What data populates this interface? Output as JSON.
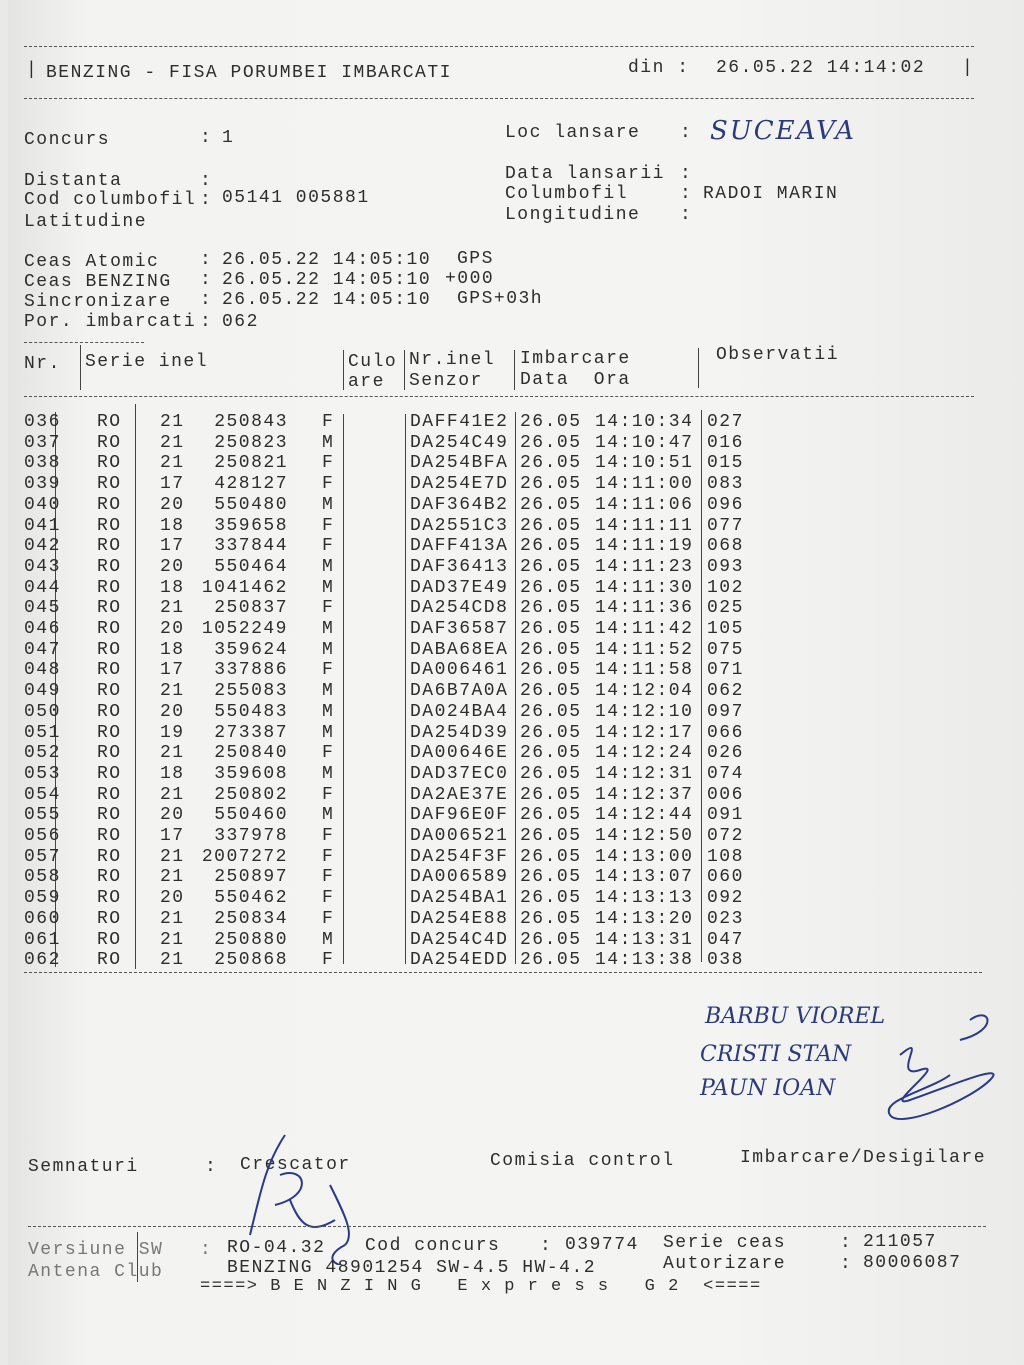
{
  "header": {
    "title": "BENZING - FISA PORUMBEI IMBARCATI",
    "date_label": "din :",
    "date_value": "26.05.22 14:14:02"
  },
  "info": {
    "concurs_label": "Concurs",
    "concurs_value": "1",
    "distanta_label": "Distanta",
    "cod_label": "Cod columbofil",
    "cod_value": "05141 005881",
    "latitudine_label": "Latitudine",
    "loc_label": "Loc lansare",
    "loc_value": "SUCEAVA",
    "data_lansarii_label": "Data lansarii",
    "columbofil_label": "Columbofil",
    "columbofil_value": "RADOI MARIN",
    "longitudine_label": "Longitudine"
  },
  "clock": {
    "atomic_label": "Ceas Atomic",
    "atomic_value": "26.05.22 14:05:10",
    "atomic_suffix": "GPS",
    "benzing_label": "Ceas BENZING",
    "benzing_value": "26.05.22 14:05:10",
    "benzing_suffix": "+000",
    "sync_label": "Sincronizare",
    "sync_value": "26.05.22 14:05:10",
    "sync_suffix": "GPS+03h",
    "por_label": "Por. imbarcati",
    "por_value": "062"
  },
  "table": {
    "headers": {
      "nr": "Nr.",
      "serie": "Serie inel",
      "culoare1": "Culo",
      "culoare2": "are",
      "nrinel1": "Nr.inel",
      "nrinel2": "Senzor",
      "imb1": "Imbarcare",
      "imb2": "Data  Ora",
      "obs": "Observatii"
    },
    "rows": [
      [
        "036",
        "RO",
        "21",
        "250843",
        "F",
        "DAFF41E2",
        "26.05",
        "14:10:34",
        "027"
      ],
      [
        "037",
        "RO",
        "21",
        "250823",
        "M",
        "DA254C49",
        "26.05",
        "14:10:47",
        "016"
      ],
      [
        "038",
        "RO",
        "21",
        "250821",
        "F",
        "DA254BFA",
        "26.05",
        "14:10:51",
        "015"
      ],
      [
        "039",
        "RO",
        "17",
        "428127",
        "F",
        "DA254E7D",
        "26.05",
        "14:11:00",
        "083"
      ],
      [
        "040",
        "RO",
        "20",
        "550480",
        "M",
        "DAF364B2",
        "26.05",
        "14:11:06",
        "096"
      ],
      [
        "041",
        "RO",
        "18",
        "359658",
        "F",
        "DA2551C3",
        "26.05",
        "14:11:11",
        "077"
      ],
      [
        "042",
        "RO",
        "17",
        "337844",
        "F",
        "DAFF413A",
        "26.05",
        "14:11:19",
        "068"
      ],
      [
        "043",
        "RO",
        "20",
        "550464",
        "M",
        "DAF36413",
        "26.05",
        "14:11:23",
        "093"
      ],
      [
        "044",
        "RO",
        "18",
        "1041462",
        "M",
        "DAD37E49",
        "26.05",
        "14:11:30",
        "102"
      ],
      [
        "045",
        "RO",
        "21",
        "250837",
        "F",
        "DA254CD8",
        "26.05",
        "14:11:36",
        "025"
      ],
      [
        "046",
        "RO",
        "20",
        "1052249",
        "M",
        "DAF36587",
        "26.05",
        "14:11:42",
        "105"
      ],
      [
        "047",
        "RO",
        "18",
        "359624",
        "M",
        "DABA68EA",
        "26.05",
        "14:11:52",
        "075"
      ],
      [
        "048",
        "RO",
        "17",
        "337886",
        "F",
        "DA006461",
        "26.05",
        "14:11:58",
        "071"
      ],
      [
        "049",
        "RO",
        "21",
        "255083",
        "M",
        "DA6B7A0A",
        "26.05",
        "14:12:04",
        "062"
      ],
      [
        "050",
        "RO",
        "20",
        "550483",
        "M",
        "DA024BA4",
        "26.05",
        "14:12:10",
        "097"
      ],
      [
        "051",
        "RO",
        "19",
        "273387",
        "M",
        "DA254D39",
        "26.05",
        "14:12:17",
        "066"
      ],
      [
        "052",
        "RO",
        "21",
        "250840",
        "F",
        "DA00646E",
        "26.05",
        "14:12:24",
        "026"
      ],
      [
        "053",
        "RO",
        "18",
        "359608",
        "M",
        "DAD37EC0",
        "26.05",
        "14:12:31",
        "074"
      ],
      [
        "054",
        "RO",
        "21",
        "250802",
        "F",
        "DA2AE37E",
        "26.05",
        "14:12:37",
        "006"
      ],
      [
        "055",
        "RO",
        "20",
        "550460",
        "M",
        "DAF96E0F",
        "26.05",
        "14:12:44",
        "091"
      ],
      [
        "056",
        "RO",
        "17",
        "337978",
        "F",
        "DA006521",
        "26.05",
        "14:12:50",
        "072"
      ],
      [
        "057",
        "RO",
        "21",
        "2007272",
        "F",
        "DA254F3F",
        "26.05",
        "14:13:00",
        "108"
      ],
      [
        "058",
        "RO",
        "21",
        "250897",
        "F",
        "DA006589",
        "26.05",
        "14:13:07",
        "060"
      ],
      [
        "059",
        "RO",
        "20",
        "550462",
        "F",
        "DA254BA1",
        "26.05",
        "14:13:13",
        "092"
      ],
      [
        "060",
        "RO",
        "21",
        "250834",
        "F",
        "DA254E88",
        "26.05",
        "14:13:20",
        "023"
      ],
      [
        "061",
        "RO",
        "21",
        "250880",
        "M",
        "DA254C4D",
        "26.05",
        "14:13:31",
        "047"
      ],
      [
        "062",
        "RO",
        "21",
        "250868",
        "F",
        "DA254EDD",
        "26.05",
        "14:13:38",
        "038"
      ]
    ]
  },
  "handwritten_names": [
    "BARBU VIOREL",
    "CRISTI STAN",
    "PAUN IOAN"
  ],
  "signatures": {
    "label": "Semnaturi",
    "crescator": "Crescator",
    "comisia": "Comisia control",
    "imbarcare": "Imbarcare/Desigilare"
  },
  "footer": {
    "versiune_label": "Versiune SW",
    "versiune_value": "RO-04.32",
    "cod_concurs_label": "Cod concurs",
    "cod_concurs_value": "039774",
    "serie_ceas_label": "Serie ceas",
    "serie_ceas_value": "211057",
    "antena_label": "Antena Club",
    "antena_value": "BENZING 48901254 SW-4.5 HW-4.2",
    "autorizare_label": "Autorizare",
    "autorizare_value": "80006087",
    "banner": "====> B E N Z I N G   E x p r e s s   G 2  <===="
  }
}
